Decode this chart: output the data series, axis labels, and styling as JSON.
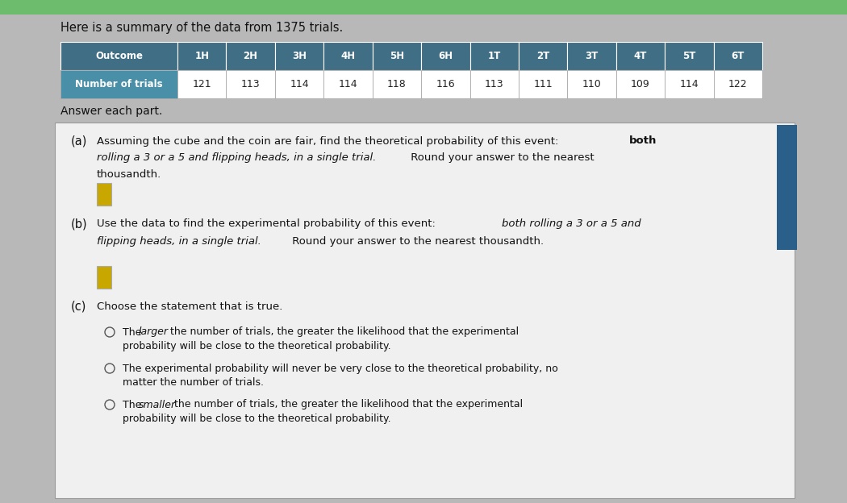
{
  "title_text": "Here is a summary of the data from 1375 trials.",
  "table_header": [
    "Outcome",
    "1H",
    "2H",
    "3H",
    "4H",
    "5H",
    "6H",
    "1T",
    "2T",
    "3T",
    "4T",
    "5T",
    "6T"
  ],
  "table_row_label": "Number of trials",
  "table_values": [
    121,
    113,
    114,
    114,
    118,
    116,
    113,
    111,
    110,
    109,
    114,
    122
  ],
  "header_bg": "#406e85",
  "header_text_color": "#ffffff",
  "row_bg": "#4a8fa8",
  "cell_bg": "#ffffff",
  "cell_text_color": "#222222",
  "answer_each_part": "Answer each part.",
  "part_a_label": "(a)",
  "part_b_label": "(b)",
  "part_c_label": "(c)",
  "part_c_text": "Choose the statement that is true.",
  "option1_normal1": "The ",
  "option1_italic": "larger",
  "option1_normal2": " the number of trials, the greater the likelihood that the experimental",
  "option1_line2": "probability will be close to the theoretical probability.",
  "option2_line1": "The experimental probability will never be very close to the theoretical probability, no",
  "option2_line2": "matter the number of trials.",
  "option3_normal1": "The ",
  "option3_italic": "smaller",
  "option3_normal2": " the number of trials, the greater the likelihood that the experimental",
  "option3_line2": "probability will be close to the theoretical probability.",
  "input_box_color": "#c8a800",
  "outer_bg": "#b8b8b8",
  "inner_bg": "#e8e8e8",
  "panel_bg": "#f0f0f0",
  "top_bar_color": "#6dbb6d",
  "right_panel_color": "#2a5f8a",
  "border_color": "#999999"
}
